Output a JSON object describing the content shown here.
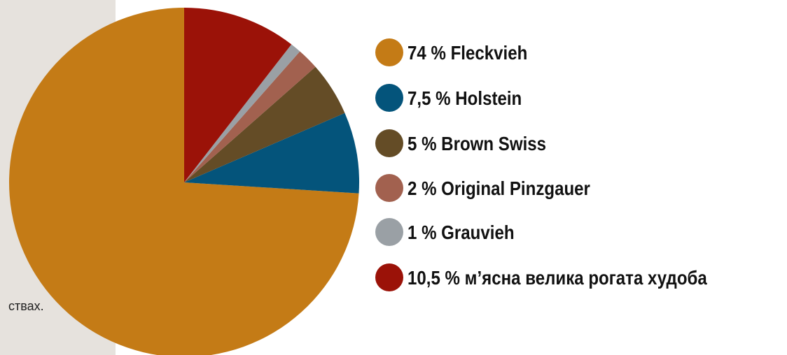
{
  "side_text": "ствах.",
  "chart_data": {
    "type": "pie",
    "categories": [
      "Fleckvieh",
      "Holstein",
      "Brown Swiss",
      "Original Pinzgauer",
      "Grauvieh",
      "м’ясна велика рогата худоба"
    ],
    "values": [
      74,
      7.5,
      5,
      2,
      1,
      10.5
    ],
    "value_labels": [
      "74 %",
      "7,5 %",
      "5 %",
      "2 %",
      "1 %",
      "10,5 %"
    ],
    "colors": [
      "#c47b16",
      "#04547b",
      "#644c26",
      "#a2614f",
      "#9aa0a5",
      "#9b1208"
    ]
  }
}
